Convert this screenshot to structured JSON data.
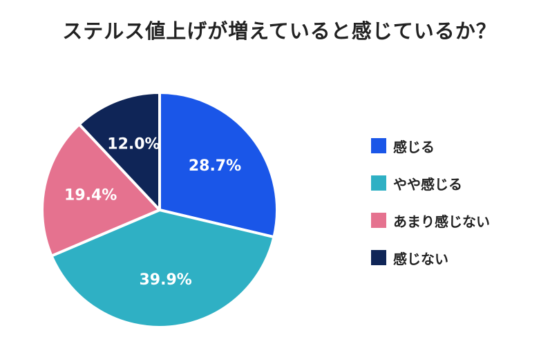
{
  "chart_data": {
    "type": "pie",
    "title": "ステルス値上げが増えていると感じているか？",
    "categories": [
      "感じる",
      "やや感じる",
      "あまり感じない",
      "感じない"
    ],
    "values": [
      28.7,
      39.9,
      19.4,
      12.0
    ],
    "value_labels": [
      "28.7%",
      "39.9%",
      "19.4%",
      "12.0%"
    ],
    "colors": [
      "#1a56e8",
      "#2fb0c4",
      "#e5728f",
      "#0f2557"
    ],
    "start_angle": "12 o'clock",
    "direction": "clockwise",
    "legend_position": "right"
  }
}
